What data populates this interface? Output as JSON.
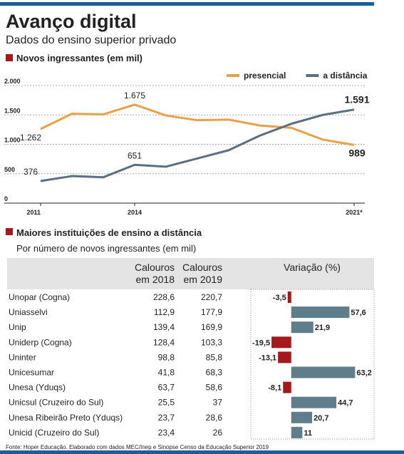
{
  "header": {
    "title": "Avanço digital",
    "subtitle": "Dados do ensino superior privado"
  },
  "chart_data": [
    {
      "type": "line",
      "title": "Novos ingressantes (em mil)",
      "x": [
        "2011",
        null,
        null,
        "2014",
        null,
        null,
        null,
        null,
        null,
        null,
        "2021*"
      ],
      "series": [
        {
          "name": "presencial",
          "color": "#e8a04a",
          "values": [
            1262,
            1520,
            1510,
            1675,
            1490,
            1410,
            1420,
            1320,
            1280,
            1080,
            989
          ],
          "value_labels": [
            "1.262",
            null,
            null,
            "1.675",
            null,
            null,
            null,
            null,
            null,
            null,
            "989"
          ]
        },
        {
          "name": "a distância",
          "color": "#5b6f80",
          "values": [
            376,
            460,
            440,
            651,
            620,
            760,
            900,
            1150,
            1350,
            1500,
            1591
          ],
          "value_labels": [
            "376",
            null,
            null,
            "651",
            null,
            null,
            null,
            null,
            null,
            null,
            "1.591"
          ]
        }
      ],
      "ylim": [
        0,
        2000
      ],
      "yticks": [
        {
          "value": 0,
          "label": "0"
        },
        {
          "value": 500,
          "label": "500"
        },
        {
          "value": 1000,
          "label": "1.000"
        },
        {
          "value": 1500,
          "label": "1.500"
        },
        {
          "value": 2000,
          "label": "2.000"
        }
      ],
      "grid": true,
      "legend": "top-right"
    },
    {
      "type": "hbar",
      "title": "Variação (%)",
      "values": [
        -3.5,
        57.6,
        21.9,
        -19.5,
        -13.1,
        63.2,
        -8.1,
        44.7,
        20.7,
        11
      ],
      "value_labels": [
        "-3,5",
        "57,6",
        "21,9",
        "-19,5",
        "-13,1",
        "63,2",
        "-8,1",
        "44,7",
        "20,7",
        "11"
      ],
      "xlim": [
        -40,
        82
      ],
      "color_positive": "#5f7d8a",
      "color_negative": "#a3191c"
    }
  ],
  "table": {
    "title": "Maiores instituições de ensino a distância",
    "subtitle": "Por número de novos ingressantes (em mil)",
    "columns": [
      [
        "Calouros",
        "em 2018"
      ],
      [
        "Calouros",
        "em 2019"
      ]
    ],
    "rows": [
      [
        "Unopar (Cogna)",
        "228,6",
        "220,7"
      ],
      [
        "Uniasselvi",
        "112,9",
        "177,9"
      ],
      [
        "Unip",
        "139,4",
        "169,9"
      ],
      [
        "Uniderp (Cogna)",
        "128,4",
        "103,3"
      ],
      [
        "Uninter",
        "98,8",
        "85,8"
      ],
      [
        "Unicesumar",
        "41,8",
        "68,3"
      ],
      [
        "Unesa (Yduqs)",
        "63,7",
        "58,6"
      ],
      [
        "Unicsul (Cruzeiro do Sul)",
        "25,5",
        "37"
      ],
      [
        "Unesa Ribeirão Preto (Yduqs)",
        "23,7",
        "28,6"
      ],
      [
        "Unicid (Cruzeiro do Sul)",
        "23,4",
        "26"
      ]
    ]
  },
  "footer": {
    "source": "Fonte: Hoper Educação. Elaborado com dados MEC/Inep e Sinopse Censo da Educação Superior 2019"
  }
}
